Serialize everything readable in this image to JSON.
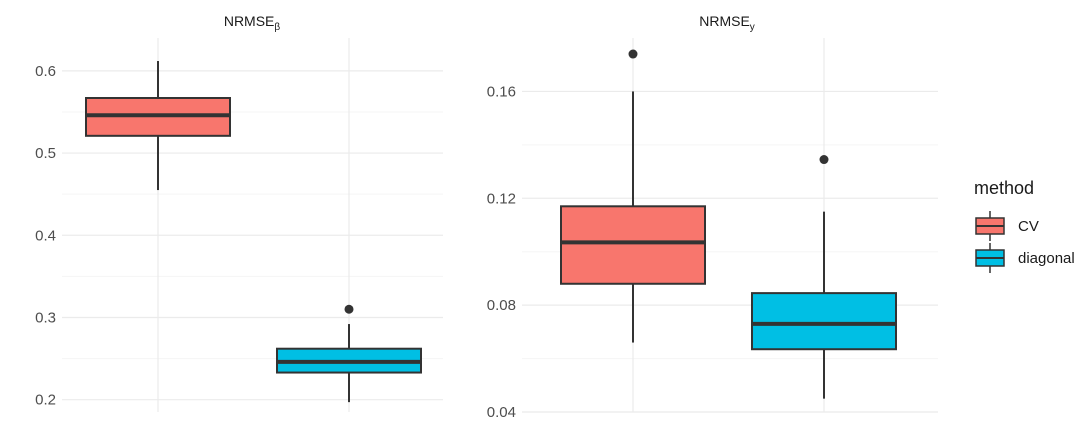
{
  "chart_data": [
    {
      "type": "boxplot",
      "title": "NRMSE",
      "title_subscript": "β",
      "categories": [
        "CV",
        "diagonal"
      ],
      "ylim": [
        0.185,
        0.64
      ],
      "yticks": [
        0.2,
        0.3,
        0.4,
        0.5,
        0.6
      ],
      "ytick_labels": [
        "0.2",
        "0.3",
        "0.4",
        "0.5",
        "0.6"
      ],
      "grid": true,
      "boxes": [
        {
          "group": "CV",
          "min": 0.455,
          "q1": 0.521,
          "median": 0.546,
          "q3": 0.567,
          "max": 0.612,
          "outliers": []
        },
        {
          "group": "diagonal",
          "min": 0.197,
          "q1": 0.233,
          "median": 0.246,
          "q3": 0.262,
          "max": 0.292,
          "outliers": [
            0.31
          ]
        }
      ]
    },
    {
      "type": "boxplot",
      "title": "NRMSE",
      "title_subscript": "y",
      "categories": [
        "CV",
        "diagonal"
      ],
      "ylim": [
        0.04,
        0.18
      ],
      "yticks": [
        0.04,
        0.08,
        0.12,
        0.16
      ],
      "ytick_labels": [
        "0.04",
        "0.08",
        "0.12",
        "0.16"
      ],
      "grid": true,
      "boxes": [
        {
          "group": "CV",
          "min": 0.066,
          "q1": 0.088,
          "median": 0.1035,
          "q3": 0.117,
          "max": 0.16,
          "outliers": [
            0.174
          ]
        },
        {
          "group": "diagonal",
          "min": 0.045,
          "q1": 0.0635,
          "median": 0.073,
          "q3": 0.0845,
          "max": 0.115,
          "outliers": [
            0.1345
          ]
        }
      ]
    }
  ],
  "legend": {
    "title": "method",
    "placement": "right",
    "items": [
      {
        "label": "CV",
        "color": "#F8766D"
      },
      {
        "label": "diagonal",
        "color": "#00BFE4"
      }
    ]
  },
  "colors": {
    "CV": "#F8766D",
    "diagonal": "#00BFE4",
    "box_outline": "#333333",
    "grid_major": "#ebebeb",
    "grid_minor": "#f5f5f5"
  }
}
